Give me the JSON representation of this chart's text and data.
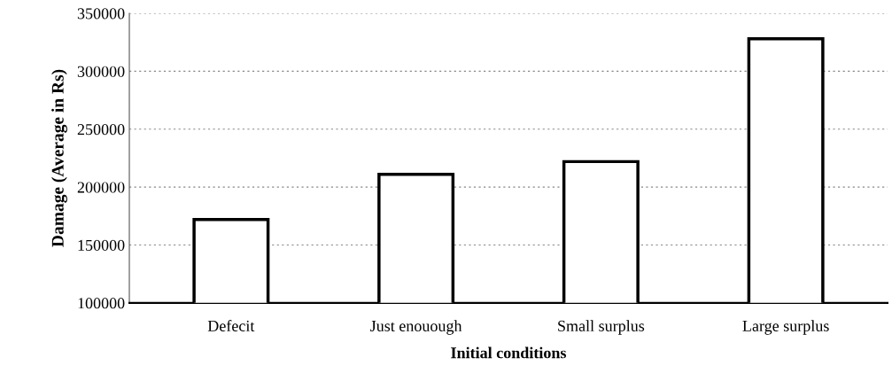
{
  "chart_data": {
    "type": "bar",
    "xlabel": "Initial conditions",
    "ylabel": "Damage (Average in Rs)",
    "categories": [
      "Defecit",
      "Just enouough",
      "Small surplus",
      "Large surplus"
    ],
    "values": [
      172000,
      211000,
      222000,
      328000
    ],
    "color": "#ffffff",
    "ylim": [
      100000,
      350000
    ],
    "yticks": [
      100000,
      150000,
      200000,
      250000,
      300000,
      350000
    ],
    "grid": "y"
  }
}
